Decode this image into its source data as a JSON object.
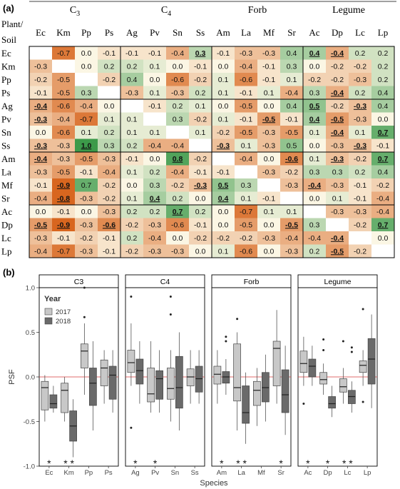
{
  "panel_a_label": "(a)",
  "panel_b_label": "(b)",
  "chart_data": [
    {
      "type": "heatmap",
      "corner_label_1": "Plant/",
      "corner_label_2": "Soil",
      "groups": [
        "C3",
        "C4",
        "Forb",
        "Legume"
      ],
      "columns": [
        "Ec",
        "Km",
        "Pp",
        "Ps",
        "Ag",
        "Pv",
        "Sn",
        "Ss",
        "Am",
        "La",
        "Mf",
        "Sr",
        "Ac",
        "Dp",
        "Lc",
        "Lp"
      ],
      "rows": [
        "Ec",
        "Km",
        "Pp",
        "Ps",
        "Ag",
        "Pv",
        "Sn",
        "Ss",
        "Am",
        "La",
        "Mf",
        "Sr",
        "Ac",
        "Dp",
        "Lc",
        "Lp"
      ],
      "values": [
        [
          null,
          -0.7,
          0.0,
          -0.1,
          -0.1,
          -0.1,
          -0.4,
          0.3,
          -0.1,
          -0.3,
          -0.3,
          0.4,
          0.4,
          -0.4,
          0.2,
          0.2
        ],
        [
          -0.3,
          null,
          0.0,
          0.2,
          0.2,
          0.1,
          0.0,
          -0.1,
          0.0,
          -0.4,
          -0.1,
          0.3,
          0.0,
          -0.2,
          -0.2,
          0.2
        ],
        [
          -0.2,
          -0.5,
          null,
          -0.2,
          0.4,
          0.0,
          -0.6,
          -0.2,
          0.1,
          -0.6,
          -0.1,
          0.1,
          -0.2,
          -0.2,
          -0.3,
          0.2
        ],
        [
          -0.1,
          -0.5,
          0.3,
          null,
          -0.3,
          0.1,
          -0.3,
          0.2,
          0.1,
          -0.1,
          0.1,
          -0.4,
          0.3,
          -0.4,
          0.2,
          0.4
        ],
        [
          -0.4,
          -0.6,
          -0.4,
          0.0,
          null,
          -0.1,
          0.2,
          0.1,
          0.0,
          -0.5,
          0.0,
          0.4,
          0.5,
          -0.2,
          -0.3,
          0.4
        ],
        [
          -0.3,
          -0.4,
          -0.7,
          0.1,
          0.1,
          null,
          0.3,
          -0.2,
          0.1,
          -0.1,
          -0.5,
          -0.1,
          0.4,
          -0.5,
          -0.3,
          0.0
        ],
        [
          0.0,
          -0.6,
          0.1,
          0.2,
          0.1,
          0.1,
          null,
          0.1,
          -0.2,
          -0.5,
          -0.3,
          -0.5,
          0.1,
          -0.4,
          0.1,
          0.7
        ],
        [
          -0.3,
          -0.3,
          1.0,
          0.3,
          0.2,
          -0.4,
          -0.4,
          null,
          -0.3,
          0.1,
          -0.3,
          0.5,
          0.0,
          -0.3,
          -0.3,
          -0.1
        ],
        [
          -0.4,
          -0.3,
          -0.5,
          -0.3,
          -0.1,
          0.0,
          0.8,
          -0.2,
          null,
          -0.4,
          0.0,
          -0.6,
          0.1,
          -0.3,
          -0.2,
          0.7
        ],
        [
          -0.3,
          -0.5,
          -0.1,
          -0.4,
          0.1,
          0.2,
          -0.4,
          -0.1,
          -0.1,
          null,
          -0.3,
          -0.2,
          0.3,
          0.3,
          0.2,
          0.4
        ],
        [
          -0.1,
          -0.9,
          0.7,
          -0.2,
          0.0,
          0.3,
          -0.2,
          -0.3,
          0.5,
          0.3,
          null,
          -0.3,
          -0.4,
          -0.3,
          -0.1,
          -0.2
        ],
        [
          -0.4,
          -0.8,
          -0.3,
          -0.2,
          0.1,
          0.4,
          0.2,
          0.0,
          0.4,
          0.1,
          -0.1,
          null,
          0.0,
          0.1,
          -0.1,
          -0.4
        ],
        [
          0.0,
          -0.1,
          0.0,
          -0.3,
          0.2,
          0.2,
          0.7,
          0.2,
          0.0,
          -0.7,
          0.1,
          0.1,
          null,
          -0.3,
          -0.3,
          -0.4
        ],
        [
          -0.5,
          -0.9,
          -0.3,
          -0.6,
          -0.2,
          -0.3,
          -0.6,
          -0.1,
          0.0,
          -0.5,
          0.0,
          -0.5,
          0.3,
          null,
          -0.2,
          0.7
        ],
        [
          -0.3,
          -0.1,
          -0.2,
          -0.1,
          0.2,
          -0.4,
          0.0,
          -0.2,
          -0.2,
          -0.2,
          -0.3,
          -0.4,
          -0.4,
          -0.4,
          null,
          0.0
        ],
        [
          -0.4,
          -0.7,
          -0.3,
          -0.1,
          -0.2,
          -0.3,
          -0.3,
          0.0,
          0.1,
          -0.6,
          0.0,
          -0.3,
          0.2,
          -0.5,
          -0.2,
          null
        ]
      ],
      "significant": [
        [
          0,
          7
        ],
        [
          0,
          12
        ],
        [
          0,
          13
        ],
        [
          3,
          13
        ],
        [
          4,
          0
        ],
        [
          4,
          12
        ],
        [
          4,
          14
        ],
        [
          5,
          0
        ],
        [
          5,
          10
        ],
        [
          5,
          12
        ],
        [
          5,
          13
        ],
        [
          6,
          13
        ],
        [
          6,
          15
        ],
        [
          7,
          0
        ],
        [
          7,
          2
        ],
        [
          7,
          8
        ],
        [
          7,
          14
        ],
        [
          8,
          0
        ],
        [
          8,
          6
        ],
        [
          8,
          11
        ],
        [
          8,
          13
        ],
        [
          8,
          15
        ],
        [
          10,
          1
        ],
        [
          10,
          7
        ],
        [
          10,
          8
        ],
        [
          10,
          12
        ],
        [
          11,
          1
        ],
        [
          11,
          5
        ],
        [
          11,
          8
        ],
        [
          12,
          6
        ],
        [
          13,
          0
        ],
        [
          13,
          1
        ],
        [
          13,
          3
        ],
        [
          13,
          11
        ],
        [
          13,
          15
        ],
        [
          14,
          13
        ],
        [
          15,
          13
        ]
      ],
      "colors": {
        "negative": "#d8661f",
        "positive": "#3c9a4a",
        "neutral": "#fbf6e4"
      }
    },
    {
      "type": "boxplot",
      "ylabel": "PSF",
      "xlabel": "Species",
      "ylim": [
        -1.0,
        1.0
      ],
      "yticks": [
        -1.0,
        -0.5,
        0.0,
        0.5,
        1.0
      ],
      "legend": {
        "title": "Year",
        "entries": [
          "2017",
          "2018"
        ],
        "colors": [
          "#c8c8c8",
          "#6a6a6a"
        ]
      },
      "facets": [
        {
          "name": "C3",
          "species": [
            {
              "label": "Ec",
              "sig": "*",
              "b2017": {
                "q1": -0.37,
                "med": -0.12,
                "q3": -0.05,
                "lo": -0.5,
                "hi": 0.02,
                "out": []
              },
              "b2018": {
                "q1": -0.35,
                "med": -0.3,
                "q3": -0.2,
                "lo": -0.4,
                "hi": -0.1,
                "out": []
              }
            },
            {
              "label": "Km",
              "sig": "**",
              "b2017": {
                "q1": -0.4,
                "med": -0.15,
                "q3": -0.07,
                "lo": -0.5,
                "hi": 0.0,
                "out": []
              },
              "b2018": {
                "q1": -0.72,
                "med": -0.55,
                "q3": -0.38,
                "lo": -0.9,
                "hi": -0.25,
                "out": []
              }
            },
            {
              "label": "Pp",
              "sig": "",
              "b2017": {
                "q1": 0.1,
                "med": 0.29,
                "q3": 0.37,
                "lo": -0.2,
                "hi": 0.6,
                "out": [
                  0.67,
                  1.0
                ]
              },
              "b2018": {
                "q1": -0.32,
                "med": -0.07,
                "q3": 0.1,
                "lo": -0.6,
                "hi": 0.4,
                "out": []
              }
            },
            {
              "label": "Ps",
              "sig": "",
              "b2017": {
                "q1": -0.1,
                "med": 0.1,
                "q3": 0.19,
                "lo": -0.3,
                "hi": 0.3,
                "out": []
              },
              "b2018": {
                "q1": -0.25,
                "med": 0.02,
                "q3": 0.12,
                "lo": -0.4,
                "hi": 0.3,
                "out": []
              }
            }
          ]
        },
        {
          "name": "C4",
          "species": [
            {
              "label": "Ag",
              "sig": "*",
              "b2017": {
                "q1": 0.05,
                "med": 0.16,
                "q3": 0.3,
                "lo": -0.1,
                "hi": 0.6,
                "out": [
                  0.9,
                  -0.57
                ]
              },
              "b2018": {
                "q1": -0.08,
                "med": 0.07,
                "q3": 0.2,
                "lo": -0.3,
                "hi": 0.4,
                "out": []
              }
            },
            {
              "label": "Pv",
              "sig": "*",
              "b2017": {
                "q1": -0.28,
                "med": -0.19,
                "q3": 0.1,
                "lo": -0.4,
                "hi": 0.4,
                "out": []
              },
              "b2018": {
                "q1": -0.25,
                "med": -0.02,
                "q3": 0.07,
                "lo": -0.4,
                "hi": 0.3,
                "out": []
              }
            },
            {
              "label": "Sn",
              "sig": "",
              "b2017": {
                "q1": -0.25,
                "med": -0.13,
                "q3": 0.1,
                "lo": -0.5,
                "hi": 0.3,
                "out": [
                  0.9,
                  0.7
                ]
              },
              "b2018": {
                "q1": -0.35,
                "med": -0.12,
                "q3": 0.23,
                "lo": -0.6,
                "hi": 0.5,
                "out": []
              }
            },
            {
              "label": "Ss",
              "sig": "",
              "b2017": {
                "q1": -0.1,
                "med": 0.0,
                "q3": 0.09,
                "lo": -0.3,
                "hi": 0.3,
                "out": []
              },
              "b2018": {
                "q1": -0.17,
                "med": -0.02,
                "q3": 0.12,
                "lo": -0.3,
                "hi": 0.3,
                "out": []
              }
            }
          ]
        },
        {
          "name": "Forb",
          "species": [
            {
              "label": "Am",
              "sig": "*",
              "b2017": {
                "q1": -0.08,
                "med": 0.03,
                "q3": 0.12,
                "lo": -0.3,
                "hi": 0.3,
                "out": []
              },
              "b2018": {
                "q1": -0.07,
                "med": 0.0,
                "q3": 0.06,
                "lo": -0.2,
                "hi": 0.2,
                "out": [
                  0.4,
                  0.45
                ]
              }
            },
            {
              "label": "La",
              "sig": "**",
              "b2017": {
                "q1": -0.27,
                "med": -0.12,
                "q3": 0.37,
                "lo": -0.6,
                "hi": 0.5,
                "out": [
                  0.65
                ]
              },
              "b2018": {
                "q1": -0.52,
                "med": -0.4,
                "q3": -0.1,
                "lo": -0.75,
                "hi": 0.05,
                "out": []
              }
            },
            {
              "label": "Mf",
              "sig": "",
              "b2017": {
                "q1": -0.32,
                "med": -0.15,
                "q3": -0.05,
                "lo": -0.55,
                "hi": 0.1,
                "out": []
              },
              "b2018": {
                "q1": -0.28,
                "med": -0.12,
                "q3": 0.05,
                "lo": -0.5,
                "hi": 0.25,
                "out": []
              }
            },
            {
              "label": "Sr",
              "sig": "*",
              "b2017": {
                "q1": -0.1,
                "med": 0.32,
                "q3": 0.4,
                "lo": -0.3,
                "hi": 0.75,
                "out": []
              },
              "b2018": {
                "q1": -0.4,
                "med": -0.2,
                "q3": 0.08,
                "lo": -0.65,
                "hi": 0.35,
                "out": []
              }
            }
          ]
        },
        {
          "name": "Legume",
          "species": [
            {
              "label": "Ac",
              "sig": "*",
              "b2017": {
                "q1": 0.05,
                "med": 0.15,
                "q3": 0.29,
                "lo": -0.1,
                "hi": 0.45,
                "out": [
                  -0.3
                ]
              },
              "b2018": {
                "q1": 0.0,
                "med": 0.12,
                "q3": 0.2,
                "lo": -0.1,
                "hi": 0.35,
                "out": []
              }
            },
            {
              "label": "Dp",
              "sig": "*",
              "b2017": {
                "q1": -0.08,
                "med": -0.03,
                "q3": 0.05,
                "lo": -0.2,
                "hi": 0.15,
                "out": [
                  0.3,
                  0.42
                ]
              },
              "b2018": {
                "q1": -0.35,
                "med": -0.3,
                "q3": -0.22,
                "lo": -0.45,
                "hi": -0.1,
                "out": []
              }
            },
            {
              "label": "Lc",
              "sig": "**",
              "b2017": {
                "q1": -0.17,
                "med": -0.11,
                "q3": -0.02,
                "lo": -0.3,
                "hi": 0.1,
                "out": [
                  0.4
                ]
              },
              "b2018": {
                "q1": -0.3,
                "med": -0.22,
                "q3": -0.15,
                "lo": -0.4,
                "hi": -0.05,
                "out": [
                  0.33,
                  0.28
                ]
              }
            },
            {
              "label": "Lp",
              "sig": "",
              "b2017": {
                "q1": 0.05,
                "med": 0.13,
                "q3": 0.18,
                "lo": -0.1,
                "hi": 0.3,
                "out": [
                  0.76,
                  -0.28
                ]
              },
              "b2018": {
                "q1": -0.08,
                "med": 0.2,
                "q3": 0.43,
                "lo": -0.35,
                "hi": 0.7,
                "out": []
              }
            }
          ]
        }
      ]
    }
  ]
}
